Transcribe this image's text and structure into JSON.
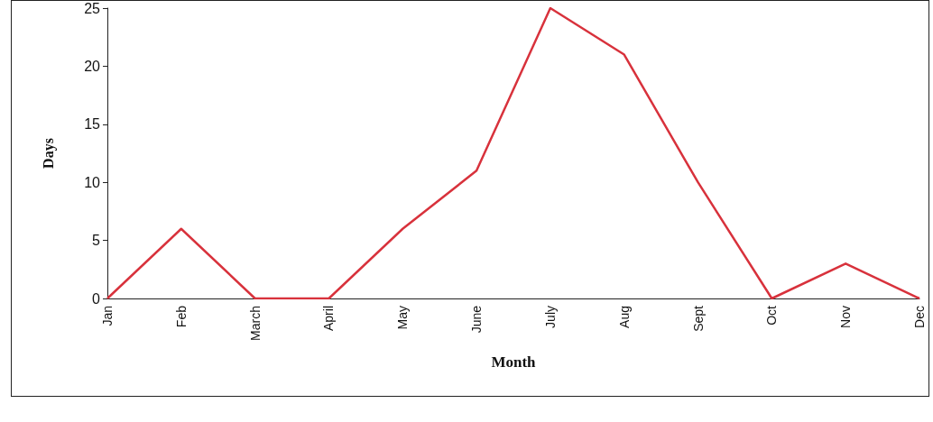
{
  "chart_data": {
    "type": "line",
    "xlabel": "Month",
    "ylabel": "Days",
    "categories": [
      "Jan",
      "Feb",
      "March",
      "April",
      "May",
      "June",
      "July",
      "Aug",
      "Sept",
      "Oct",
      "Nov",
      "Dec"
    ],
    "series": [
      {
        "color": "#d8323c",
        "values": [
          0,
          6,
          0,
          0,
          6,
          11,
          25,
          21,
          10,
          0,
          3,
          0
        ]
      }
    ],
    "ylim": [
      0,
      25
    ],
    "yticks": [
      0,
      5,
      10,
      15,
      20,
      25
    ],
    "grid": false,
    "marker": "none",
    "line_style": "solid"
  }
}
